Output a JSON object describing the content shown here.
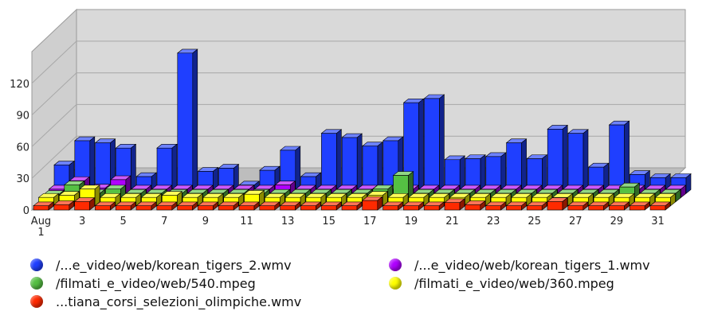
{
  "chart_data": {
    "type": "bar",
    "style": "3d-stacked-depth",
    "grid": true,
    "ylim": [
      0,
      150
    ],
    "yticks": [
      0,
      30,
      60,
      90,
      120
    ],
    "days": [
      1,
      2,
      3,
      4,
      5,
      6,
      7,
      8,
      9,
      10,
      11,
      12,
      13,
      14,
      15,
      16,
      17,
      18,
      19,
      20,
      21,
      22,
      23,
      24,
      25,
      26,
      27,
      28,
      29,
      30,
      31
    ],
    "xtick_labels": [
      "Aug\n1",
      "3",
      "5",
      "7",
      "9",
      "11",
      "13",
      "15",
      "17",
      "19",
      "21",
      "23",
      "25",
      "27",
      "29",
      "31"
    ],
    "legend_placement": "bottom",
    "series": [
      {
        "name": "/...e_video/web/korean_tigers_2.wmv",
        "color": "#1f3fff",
        "values": [
          27,
          50,
          48,
          43,
          16,
          43,
          133,
          21,
          24,
          8,
          22,
          41,
          16,
          57,
          53,
          45,
          50,
          86,
          90,
          32,
          33,
          35,
          48,
          33,
          61,
          57,
          25,
          65,
          18,
          15,
          15
        ]
      },
      {
        "name": "/...e_video/web/korean_tigers_1.wmv",
        "color": "#b000ff",
        "values": [
          8,
          16,
          9,
          17,
          8,
          8,
          8,
          8,
          8,
          8,
          8,
          12,
          8,
          8,
          8,
          8,
          8,
          8,
          8,
          8,
          8,
          8,
          8,
          8,
          8,
          8,
          8,
          8,
          8,
          8,
          8
        ]
      },
      {
        "name": "/filmati_e_video/web/540.mpeg",
        "color": "#55c043",
        "values": [
          7,
          16,
          8,
          12,
          8,
          8,
          8,
          8,
          8,
          8,
          8,
          8,
          8,
          8,
          8,
          8,
          12,
          25,
          8,
          8,
          8,
          8,
          8,
          8,
          8,
          8,
          8,
          8,
          14,
          8,
          8
        ]
      },
      {
        "name": "/filmati_e_video/web/360.mpeg",
        "color": "#ffff00",
        "values": [
          8,
          10,
          16,
          8,
          8,
          8,
          10,
          8,
          8,
          8,
          11,
          8,
          8,
          8,
          8,
          8,
          10,
          8,
          8,
          8,
          8,
          8,
          8,
          8,
          8,
          8,
          8,
          8,
          8,
          8,
          8
        ]
      },
      {
        "name": "...tiana_corsi_selezioni_olimpiche.wmv",
        "color": "#ff2a00",
        "values": [
          4,
          5,
          8,
          4,
          4,
          4,
          4,
          4,
          4,
          4,
          4,
          4,
          4,
          4,
          4,
          4,
          9,
          4,
          4,
          4,
          7,
          5,
          4,
          4,
          4,
          8,
          4,
          4,
          4,
          4,
          4
        ]
      }
    ]
  }
}
